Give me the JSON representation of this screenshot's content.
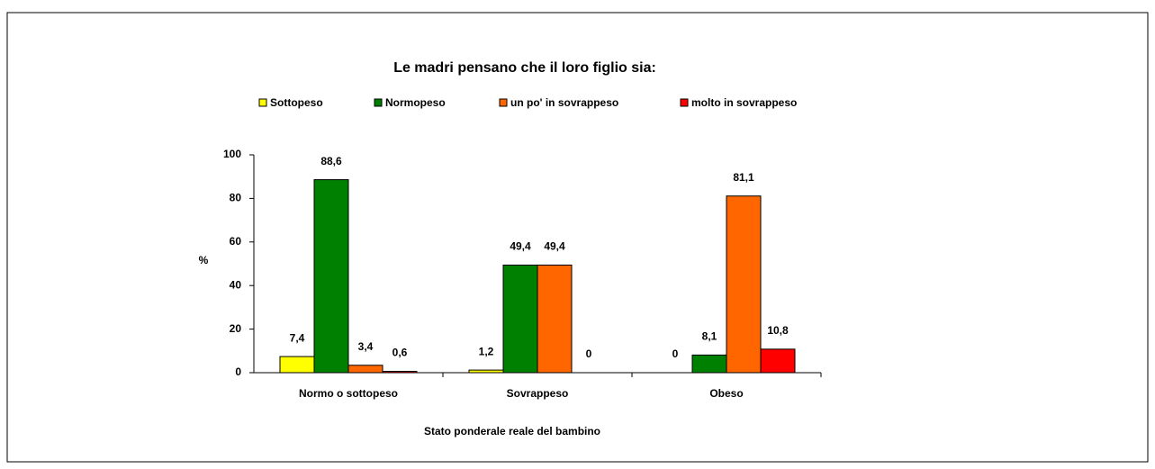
{
  "chart_data": {
    "type": "bar",
    "title": "Le madri pensano che il loro figlio sia:",
    "ylabel": "%",
    "xlabel": "Stato ponderale reale del bambino",
    "categories": [
      "Normo o sottopeso",
      "Sovrappeso",
      "Obeso"
    ],
    "series": [
      {
        "name": "Sottopeso",
        "color": "#ffff00",
        "values": [
          7.4,
          1.2,
          0
        ],
        "value_labels": [
          "7,4",
          "1,2",
          "0"
        ]
      },
      {
        "name": "Normopeso",
        "color": "#008000",
        "values": [
          88.6,
          49.4,
          8.1
        ],
        "value_labels": [
          "88,6",
          "49,4",
          "8,1"
        ]
      },
      {
        "name": "un po' in sovrappeso",
        "color": "#ff6600",
        "values": [
          3.4,
          49.4,
          81.1
        ],
        "value_labels": [
          "3,4",
          "49,4",
          "81,1"
        ]
      },
      {
        "name": "molto in sovrappeso",
        "color": "#ff0000",
        "values": [
          0.6,
          0,
          10.8
        ],
        "value_labels": [
          "0,6",
          "0",
          "10,8"
        ]
      }
    ],
    "ylim": [
      0,
      100
    ],
    "yticks": [
      0,
      20,
      40,
      60,
      80,
      100
    ],
    "grid": false,
    "legend": "top"
  }
}
